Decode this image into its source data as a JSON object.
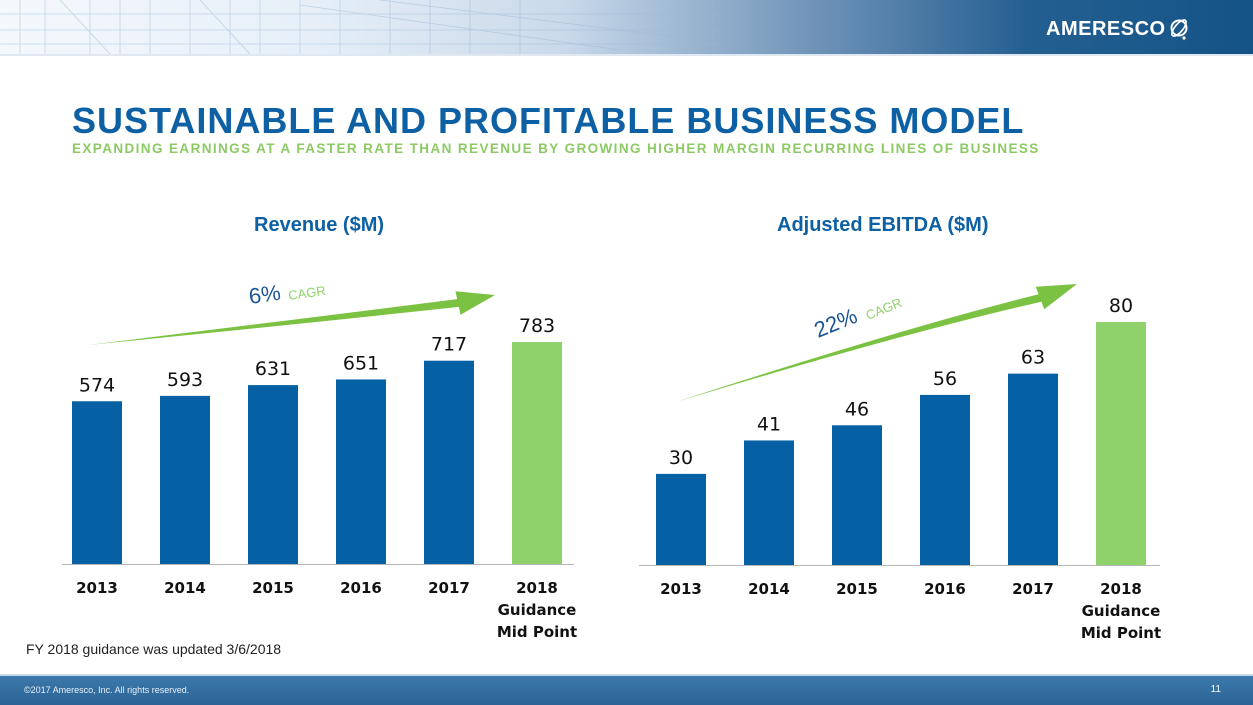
{
  "header": {
    "logo_text": "AMERESCO",
    "logo_icon": "globe-orbit-icon"
  },
  "slide": {
    "title": "SUSTAINABLE AND PROFITABLE BUSINESS MODEL",
    "subtitle": "EXPANDING EARNINGS AT A FASTER RATE THAN REVENUE BY GROWING HIGHER MARGIN RECURRING LINES OF BUSINESS",
    "footnote": "FY 2018 guidance was updated 3/6/2018"
  },
  "footer": {
    "copyright": "©2017 Ameresco, Inc. All rights reserved.",
    "page_number": "11"
  },
  "colors": {
    "primary_blue": "#0c60a3",
    "bar_blue": "#0561a4",
    "accent_green": "#8fd16a",
    "cagr_pct_blue": "#1a5596"
  },
  "chart_data": [
    {
      "type": "bar",
      "title": "Revenue ($M)",
      "categories": [
        "2013",
        "2014",
        "2015",
        "2016",
        "2017",
        "2018 Guidance Mid Point"
      ],
      "category_lines": [
        [
          "2013"
        ],
        [
          "2014"
        ],
        [
          "2015"
        ],
        [
          "2016"
        ],
        [
          "2017"
        ],
        [
          "2018",
          "Guidance",
          "Mid Point"
        ]
      ],
      "values": [
        574,
        593,
        631,
        651,
        717,
        783
      ],
      "highlight_index": 5,
      "ylim": [
        0,
        783
      ],
      "xlabel": "",
      "ylabel": "",
      "grid": false,
      "annotation": {
        "pct": "6%",
        "label": "CAGR"
      }
    },
    {
      "type": "bar",
      "title": "Adjusted EBITDA ($M)",
      "categories": [
        "2013",
        "2014",
        "2015",
        "2016",
        "2017",
        "2018 Guidance Mid Point"
      ],
      "category_lines": [
        [
          "2013"
        ],
        [
          "2014"
        ],
        [
          "2015"
        ],
        [
          "2016"
        ],
        [
          "2017"
        ],
        [
          "2018",
          "Guidance",
          "Mid Point"
        ]
      ],
      "values": [
        30,
        41,
        46,
        56,
        63,
        80
      ],
      "highlight_index": 5,
      "ylim": [
        0,
        80
      ],
      "xlabel": "",
      "ylabel": "",
      "grid": false,
      "annotation": {
        "pct": "22%",
        "label": "CAGR"
      }
    }
  ]
}
